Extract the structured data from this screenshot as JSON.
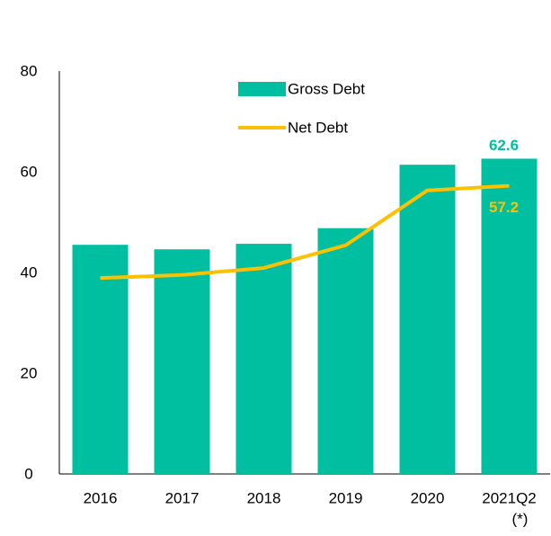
{
  "chart_data": {
    "type": "bar-line",
    "categories": [
      "2016",
      "2017",
      "2018",
      "2019",
      "2020",
      "2021Q2"
    ],
    "category_notes": [
      null,
      null,
      null,
      null,
      null,
      "(*)"
    ],
    "series": [
      {
        "name": "Gross Debt",
        "type": "bar",
        "color": "#00bfa0",
        "values": [
          45.5,
          44.6,
          45.7,
          48.8,
          61.4,
          62.6
        ],
        "value_labels": [
          null,
          null,
          null,
          null,
          null,
          "62.6"
        ]
      },
      {
        "name": "Net Debt",
        "type": "line",
        "color": "#ffc000",
        "values": [
          38.9,
          39.5,
          40.9,
          45.4,
          56.3,
          57.2
        ],
        "value_labels": [
          null,
          null,
          null,
          null,
          null,
          "57.2"
        ]
      }
    ],
    "ylim": [
      0,
      80
    ],
    "yticks": [
      0,
      20,
      40,
      60,
      80
    ],
    "grid": false
  }
}
